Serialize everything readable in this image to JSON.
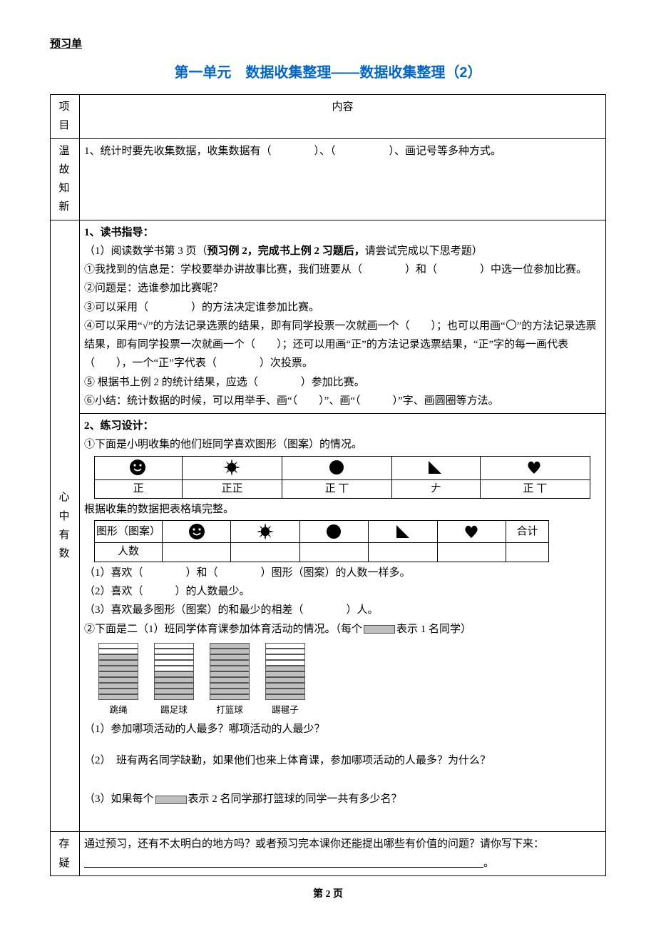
{
  "header_label": "预习单",
  "title": "第一单元　数据收集整理——数据收集整理（2）",
  "page_footer": "第 2 页",
  "table": {
    "col_header_left": "项目",
    "col_header_right": "内容",
    "row1_label": "温 故 知 新",
    "row1_text": "1、统计时要先收集数据，收集数据有（　　　　）、（　　　　　）、画记号等多种方式。",
    "row2_label": "心 中 有 数",
    "row3_label": "存疑",
    "row3_text": "通过预习，还有不太明白的地方吗？或者预习完本课你还能提出哪些有价值的问题？请你写下来：",
    "row3_period": "。"
  },
  "guide": {
    "h1": "1、读书指导：",
    "p1": "（1）阅读数学书第 3 页（",
    "p1_bold": "预习例 2，完成书上例 2 习题后，",
    "p1_tail": "请尝试完成以下思考题）",
    "p2": "①我找到的信息是：学校要举办讲故事比赛，我们班要从（　　　　）和（　　　　）中选一位参加比赛。",
    "p3": "②问题是：选谁参加比赛呢？",
    "p4": "③可以采用（　　　　）的方法决定谁参加比赛。",
    "p5a": "④可以采用“√”的方法记录选票的结果，即有同学投票一次就画一个（　　）；也可以用画“",
    "p5b": "”的方法记录选票结果，即有同学投票一次就画一个（　　）；还可以用画“正”的方法记录选票结果，“正”字的每一画代表（　　），一个“正”字代表（　　　　）次投票。",
    "p6": "⑤ 根据书上例 2 的统计结果，应选（　　　　）参加比赛。",
    "p7": "⑥小结：统计数据的时候，可以用举手、画“（　　）”、画“（　　　）”字、画圆圈等方法。"
  },
  "practice": {
    "h2": "2、练习设计：",
    "p1": "①下面是小明收集的他们班同学喜欢图形（图案）的情况。",
    "tally_row": [
      "正",
      "正正",
      "正 丅",
      "𠂇",
      "正 丅"
    ],
    "p_after_tally": "根据收集的数据把表格填完整。",
    "table2_header": "图形（图案）",
    "table2_total": "合计",
    "table2_row2": "人数",
    "q1": "（1）喜欢（　　　　）和（　　　　）图形（图案）的人数一样多。",
    "q2": "（2）喜欢（　　　）的人数最少。",
    "q3": "（3）喜欢最多图形（图案）的和最少的相差（　　　　）人。",
    "p2a": "②下面是二（1）班同学体育课参加体育活动的情况。（每个",
    "p2b": "表示 1 名同学）",
    "picto": {
      "labels": [
        "跳绳",
        "踢足球",
        "打篮球",
        "踢毽子"
      ],
      "filled": [
        8,
        5,
        10,
        6
      ],
      "total_slots": [
        10,
        10,
        10,
        10
      ]
    },
    "pq1": "（1）参加哪项活动的人最多？哪项活动的人最少？",
    "pq2": "（2）　班有两名同学缺勤，如果他们也来上体育课，参加哪项活动的人最多？为什么？",
    "pq3a": "（3）如果每个",
    "pq3b": "表示 2 名同学那打篮球的同学一共有多少名？"
  },
  "icons": {
    "colors": {
      "fill": "#000000"
    }
  }
}
